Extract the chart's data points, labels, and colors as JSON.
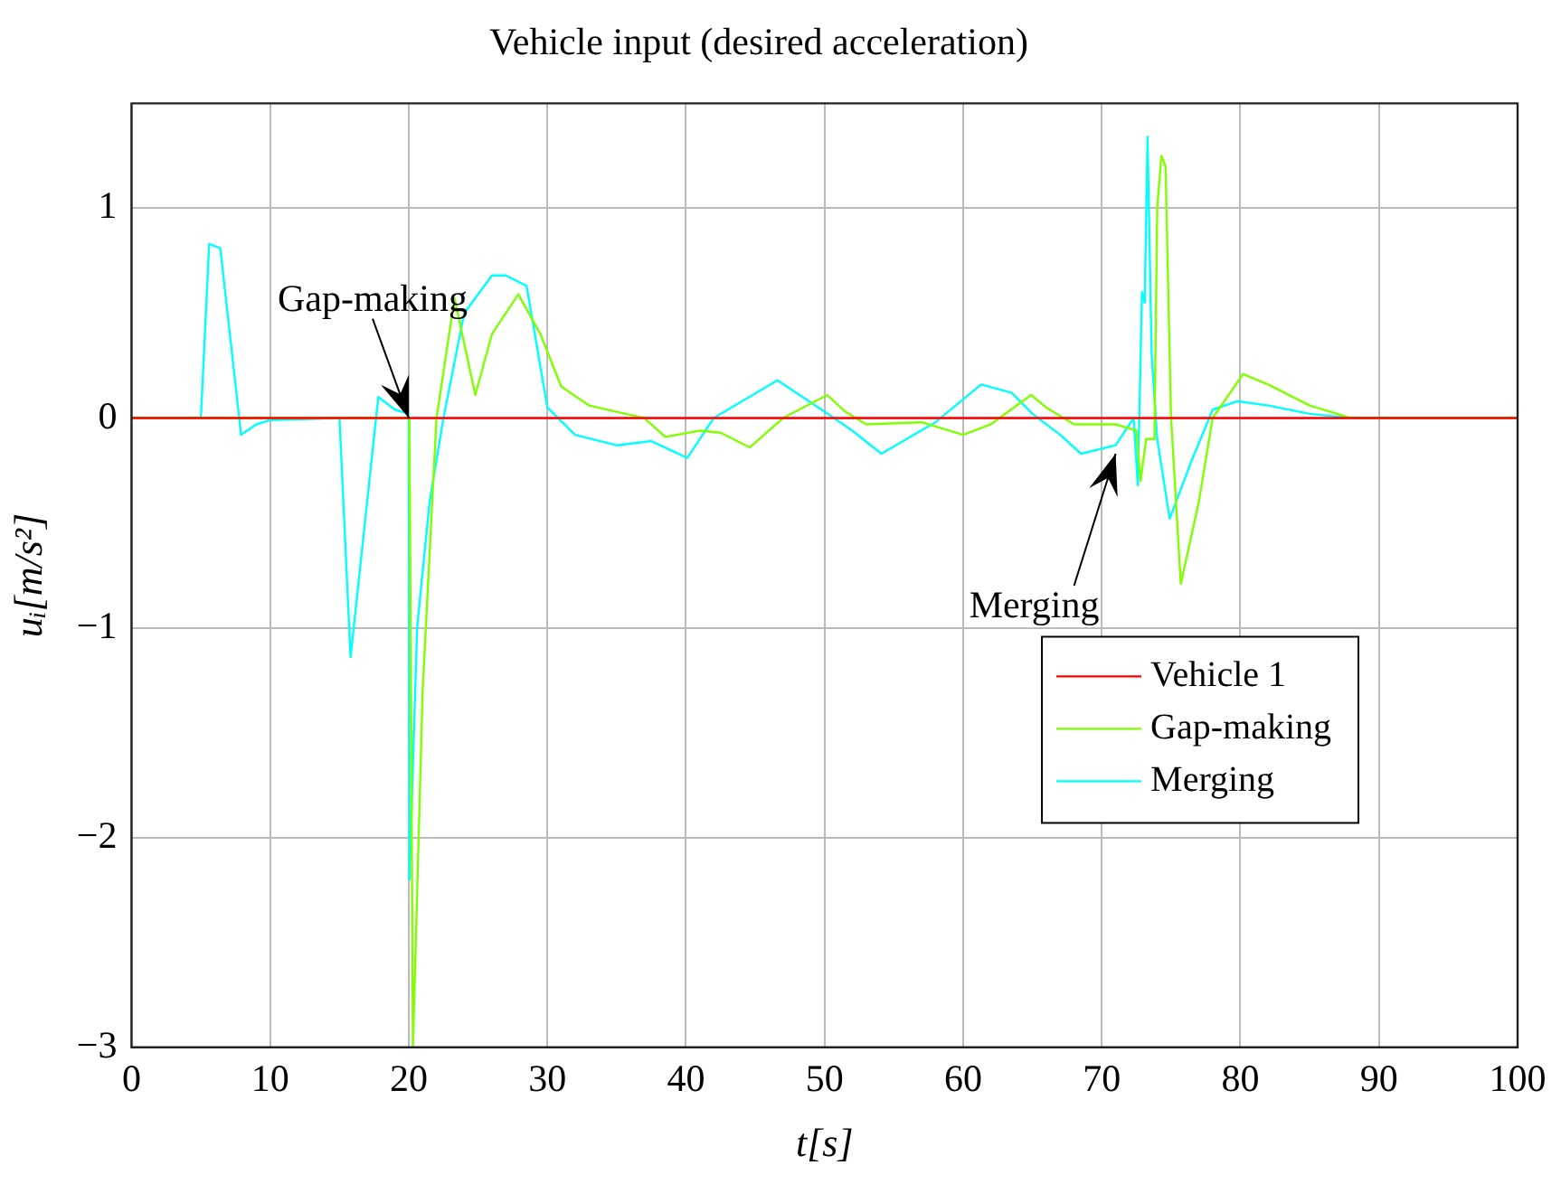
{
  "chart_data": {
    "type": "line",
    "title": "Vehicle input (desired acceleration)",
    "xlabel": "t[s]",
    "ylabel": "uᵢ[m/s²]",
    "xlim": [
      0,
      100
    ],
    "xticks": [
      0,
      10,
      20,
      30,
      40,
      50,
      60,
      70,
      80,
      90,
      100
    ],
    "ylim": [
      -3,
      1.5
    ],
    "yticks": [
      -3,
      -2,
      -1,
      0,
      1
    ],
    "grid": true,
    "legend": "right",
    "marker": "none",
    "line_style": "solid",
    "series": [
      {
        "name": "Vehicle 1",
        "color": "#ff0000",
        "x": [
          0,
          100
        ],
        "values": [
          0,
          0
        ]
      },
      {
        "name": "Gap-making",
        "color": "#80ff00",
        "x": [
          0,
          20,
          20.05,
          20.3,
          21,
          22,
          23.3,
          24.8,
          26,
          27.9,
          29.5,
          31,
          33,
          35,
          37,
          38.5,
          41,
          42.5,
          44.6,
          47,
          50.2,
          51.5,
          53,
          57,
          60,
          62,
          64.9,
          66,
          68,
          71,
          72.5,
          72.8,
          73.2,
          73.8,
          74,
          74.3,
          74.6,
          75,
          75.7,
          77,
          78,
          80.2,
          82,
          85,
          88,
          100
        ],
        "values": [
          0,
          0,
          0,
          -3,
          -1.3,
          0,
          0.57,
          0.11,
          0.4,
          0.59,
          0.4,
          0.15,
          0.06,
          0.03,
          0,
          -0.09,
          -0.06,
          -0.07,
          -0.14,
          0,
          0.11,
          0.03,
          -0.03,
          -0.02,
          -0.08,
          -0.03,
          0.11,
          0.05,
          -0.03,
          -0.03,
          -0.06,
          -0.3,
          -0.1,
          -0.1,
          1,
          1.25,
          1.2,
          0,
          -0.79,
          -0.4,
          0,
          0.21,
          0.16,
          0.06,
          0,
          0
        ]
      },
      {
        "name": "Merging",
        "color": "#00ffff",
        "x": [
          0,
          5,
          5.6,
          6.4,
          7.9,
          9,
          10,
          15,
          15.8,
          17.8,
          19,
          20,
          20.05,
          20.6,
          21.5,
          22.5,
          24,
          26,
          27,
          28.5,
          30,
          32,
          35,
          37.5,
          40.1,
          42,
          46.6,
          50,
          52,
          54.1,
          58,
          61.3,
          63.5,
          65,
          67,
          68.5,
          71,
          72.3,
          72.6,
          72.9,
          73.1,
          73.3,
          73.6,
          74,
          74.9,
          76.5,
          78,
          79.8,
          82,
          85,
          88,
          100
        ],
        "values": [
          0,
          0,
          0.83,
          0.81,
          -0.08,
          -0.03,
          -0.01,
          0,
          -1.14,
          0.1,
          0.04,
          0.02,
          -2.2,
          -1,
          -0.4,
          0,
          0.5,
          0.68,
          0.68,
          0.63,
          0.05,
          -0.08,
          -0.13,
          -0.11,
          -0.19,
          0,
          0.18,
          0.03,
          -0.06,
          -0.17,
          -0.02,
          0.16,
          0.12,
          0.02,
          -0.08,
          -0.17,
          -0.13,
          0,
          -0.32,
          0.6,
          0.55,
          1.34,
          0.3,
          -0.1,
          -0.48,
          -0.2,
          0.04,
          0.08,
          0.06,
          0.02,
          0,
          0
        ]
      }
    ],
    "annotations": [
      {
        "text": "Gap-making",
        "x": 20,
        "y": 0
      },
      {
        "text": "Merging",
        "x": 71,
        "y": -0.17
      }
    ]
  }
}
